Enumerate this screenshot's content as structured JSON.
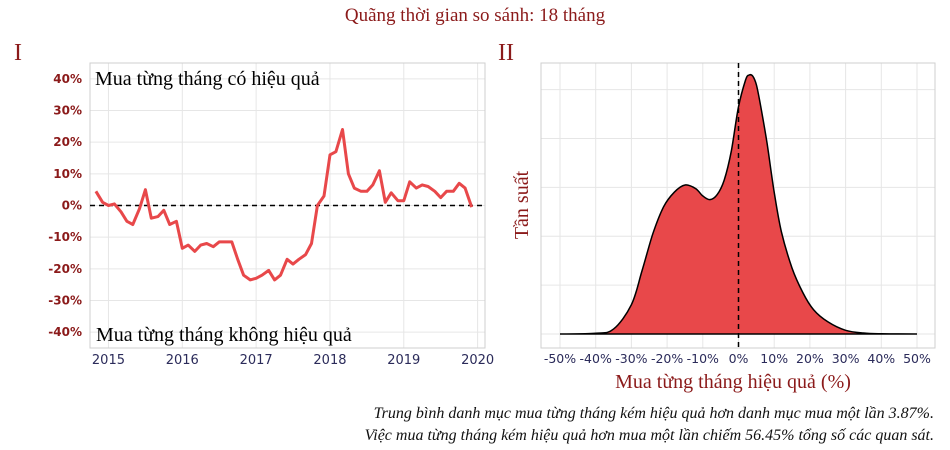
{
  "title": "Quãng thời gian so sánh: 18 tháng",
  "footnote_lines": [
    "Trung bình danh mục mua từng tháng kém hiệu quả hơn danh mục mua một lần 3.87%.",
    "Việc mua từng tháng kém hiệu quả hơn mua một lần chiếm 56.45% tổng số các quan sát."
  ],
  "colors": {
    "accent": "#e8484a",
    "title": "#8B1a1a",
    "tick_x": "#2b2b5a"
  },
  "chart_data": [
    {
      "panel_label": "I",
      "type": "line",
      "annotation_top": "Mua từng tháng có hiệu quả",
      "annotation_bottom": "Mua từng tháng không hiệu quả",
      "xlim": [
        2014.75,
        2020.1
      ],
      "ylim": [
        -45,
        45
      ],
      "x_ticks": [
        2015,
        2016,
        2017,
        2018,
        2019,
        2020
      ],
      "x_tick_labels": [
        "2015",
        "2016",
        "2017",
        "2018",
        "2019",
        "2020"
      ],
      "y_ticks": [
        -40,
        -30,
        -20,
        -10,
        0,
        10,
        20,
        30,
        40
      ],
      "y_tick_labels": [
        "-40%",
        "-30%",
        "-20%",
        "-10%",
        "0%",
        "10%",
        "20%",
        "30%",
        "40%"
      ],
      "grid": true,
      "reference_line_y": 0,
      "series": [
        {
          "x": [
            2014.83,
            2014.92,
            2015.0,
            2015.08,
            2015.17,
            2015.25,
            2015.33,
            2015.42,
            2015.5,
            2015.58,
            2015.67,
            2015.75,
            2015.83,
            2015.92,
            2016.0,
            2016.08,
            2016.17,
            2016.25,
            2016.33,
            2016.42,
            2016.5,
            2016.58,
            2016.67,
            2016.75,
            2016.83,
            2016.92,
            2017.0,
            2017.08,
            2017.17,
            2017.25,
            2017.33,
            2017.42,
            2017.5,
            2017.58,
            2017.67,
            2017.75,
            2017.83,
            2017.92,
            2018.0,
            2018.08,
            2018.17,
            2018.25,
            2018.33,
            2018.42,
            2018.5,
            2018.58,
            2018.67,
            2018.75,
            2018.83,
            2018.92,
            2019.0,
            2019.08,
            2019.17,
            2019.25,
            2019.33,
            2019.42,
            2019.5,
            2019.58,
            2019.67,
            2019.75,
            2019.83,
            2019.92
          ],
          "values": [
            4.5,
            1,
            0,
            0.5,
            -2,
            -5,
            -6,
            -1,
            5,
            -4,
            -3.5,
            -1.5,
            -6,
            -5,
            -13.5,
            -12.5,
            -14.5,
            -12.5,
            -12,
            -13,
            -11.5,
            -11.5,
            -11.5,
            -17,
            -22,
            -23.5,
            -23,
            -22,
            -20.5,
            -23.5,
            -22,
            -17,
            -18.5,
            -17,
            -15.5,
            -12,
            0,
            3,
            16,
            17,
            24,
            10,
            5.5,
            4.5,
            4.5,
            6.5,
            11,
            1,
            4,
            1.5,
            1.5,
            7.5,
            5.5,
            6.5,
            6,
            4.5,
            2.5,
            4.5,
            4.5,
            7,
            5.5,
            -0.5
          ]
        }
      ]
    },
    {
      "panel_label": "II",
      "type": "area",
      "xlabel": "Mua từng tháng hiệu quả (%)",
      "ylabel": "Tần suất",
      "xlim": [
        -53,
        53
      ],
      "ylim": [
        0,
        1.1
      ],
      "x_ticks": [
        -50,
        -40,
        -30,
        -20,
        -10,
        0,
        10,
        20,
        30,
        40,
        50
      ],
      "x_tick_labels": [
        "-50%",
        "-40%",
        "-30%",
        "-20%",
        "-10%",
        "0%",
        "10%",
        "20%",
        "30%",
        "40%",
        "50%"
      ],
      "grid": true,
      "reference_line_x": 0,
      "series": [
        {
          "x": [
            -50,
            -40,
            -35,
            -30,
            -27,
            -24,
            -21,
            -18,
            -15,
            -12,
            -10,
            -8,
            -6,
            -4,
            -2,
            0,
            2,
            3,
            4,
            5,
            6,
            8,
            10,
            12,
            15,
            18,
            21,
            25,
            30,
            35,
            40,
            50
          ],
          "values": [
            0,
            0.003,
            0.02,
            0.12,
            0.26,
            0.41,
            0.52,
            0.58,
            0.61,
            0.595,
            0.565,
            0.55,
            0.57,
            0.63,
            0.75,
            0.93,
            1.04,
            1.06,
            1.055,
            1.02,
            0.95,
            0.78,
            0.58,
            0.42,
            0.27,
            0.17,
            0.1,
            0.05,
            0.015,
            0.004,
            0.001,
            0
          ]
        }
      ]
    }
  ]
}
